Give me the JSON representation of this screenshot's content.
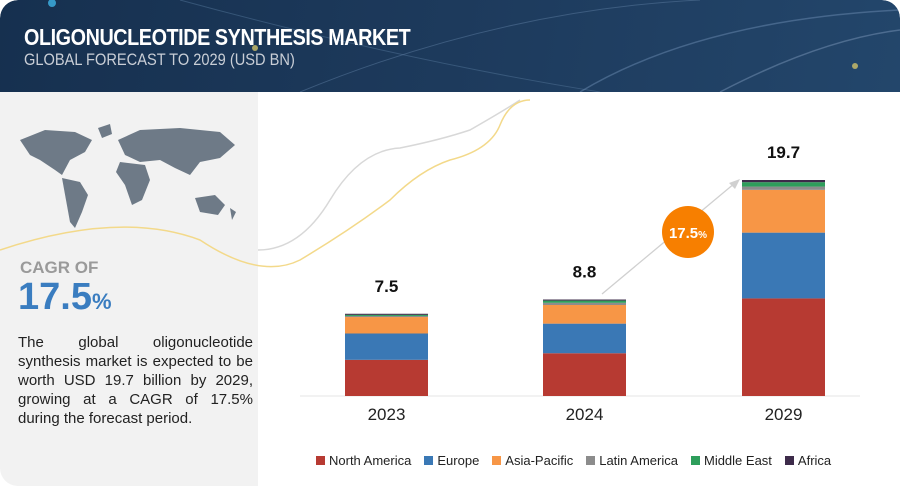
{
  "header": {
    "title": "OLIGONUCLEOTIDE SYNTHESIS MARKET",
    "subtitle": "GLOBAL FORECAST TO 2029 (USD BN)"
  },
  "sidebar": {
    "cagr_label": "CAGR OF",
    "cagr_value": "17.5",
    "cagr_unit": "%",
    "description": "The global oligonucleotide synthesis market is expected to be worth USD 19.7 billion by 2029, growing at a CAGR of 17.5% during the forecast period."
  },
  "chart_data": {
    "type": "bar",
    "stacked": true,
    "categories": [
      "2023",
      "2024",
      "2029"
    ],
    "totals": [
      "7.5",
      "8.8",
      "19.7"
    ],
    "series": [
      {
        "name": "North America",
        "color": "#b73a32",
        "values": [
          3.3,
          3.9,
          8.9
        ]
      },
      {
        "name": "Europe",
        "color": "#3a78b5",
        "values": [
          2.4,
          2.7,
          6.0
        ]
      },
      {
        "name": "Asia-Pacific",
        "color": "#f79646",
        "values": [
          1.5,
          1.7,
          3.9
        ]
      },
      {
        "name": "Latin America",
        "color": "#8c8c8c",
        "values": [
          0.1,
          0.2,
          0.3
        ]
      },
      {
        "name": "Middle East",
        "color": "#2e9e5b",
        "values": [
          0.1,
          0.2,
          0.4
        ]
      },
      {
        "name": "Africa",
        "color": "#3d2b4a",
        "values": [
          0.1,
          0.1,
          0.2
        ]
      }
    ],
    "cagr_badge": {
      "value": "17.5",
      "unit": "%",
      "color": "#f77f00"
    },
    "legend": "bottom",
    "grid": false
  }
}
